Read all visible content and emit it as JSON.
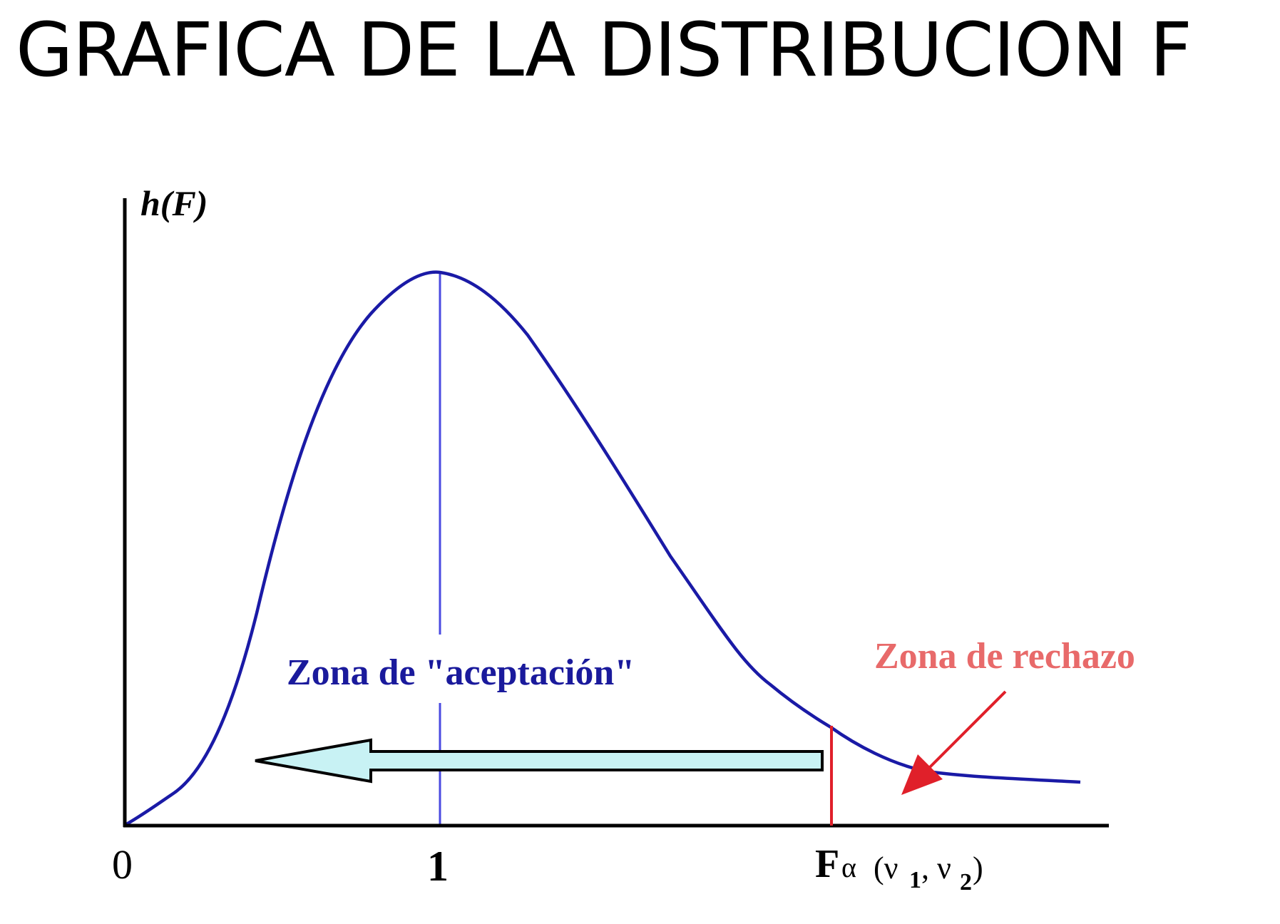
{
  "title": "GRAFICA DE LA DISTRIBUCION F",
  "diagram": {
    "y_axis_label": "h(F)",
    "x_tick_zero": "0",
    "x_tick_one": "1",
    "critical_value": {
      "main": "F",
      "alpha": "α",
      "params_open": "(ν",
      "sub1": "1",
      "comma": ", ν",
      "sub2": "2",
      "params_close": ")"
    },
    "acceptance_label": "Zona de \"aceptación\"",
    "rejection_label": "Zona de rechazo",
    "colors": {
      "curve": "#1a1aa6",
      "mean_line": "#4a4ae0",
      "critical_line": "#e0202a",
      "acceptance_text": "#1a1a9c",
      "rejection_text": "#e86a6a",
      "rejection_arrow": "#e0202a",
      "acceptance_arrow_fill": "#c8f2f4",
      "axes": "#000000"
    }
  }
}
